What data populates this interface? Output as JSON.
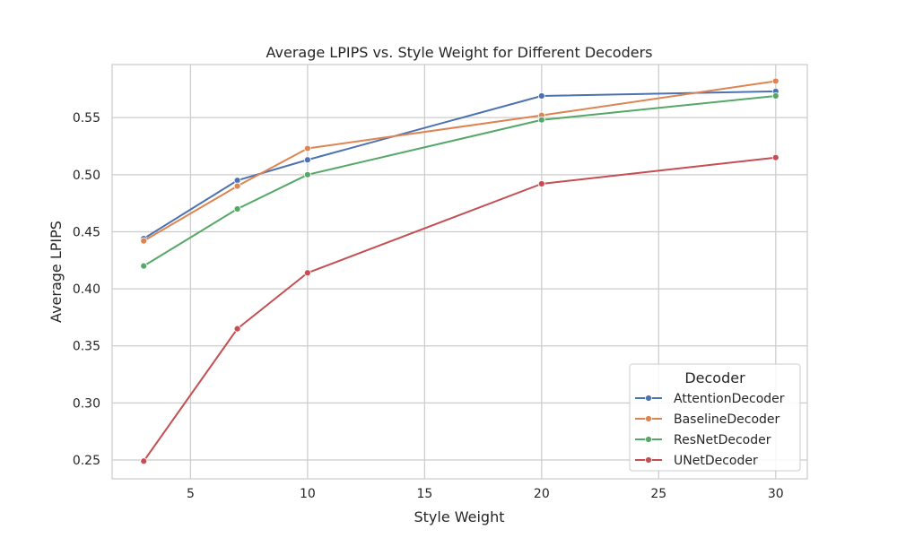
{
  "chart_data": {
    "type": "line",
    "title": "Average LPIPS vs. Style Weight for Different Decoders",
    "xlabel": "Style Weight",
    "ylabel": "Average LPIPS",
    "xlim": [
      1.65,
      31.35
    ],
    "ylim": [
      0.2335,
      0.5965
    ],
    "xticks": [
      5,
      10,
      15,
      20,
      25,
      30
    ],
    "yticks": [
      0.25,
      0.3,
      0.35,
      0.4,
      0.45,
      0.5,
      0.55
    ],
    "xtick_labels": [
      "5",
      "10",
      "15",
      "20",
      "25",
      "30"
    ],
    "ytick_labels": [
      "0.25",
      "0.30",
      "0.35",
      "0.40",
      "0.45",
      "0.50",
      "0.55"
    ],
    "grid": true,
    "legend": {
      "title": "Decoder",
      "placement": "lower-right"
    },
    "x": [
      3,
      7,
      10,
      20,
      30
    ],
    "series": [
      {
        "name": "AttentionDecoder",
        "color": "#4c72b0",
        "values": [
          0.444,
          0.495,
          0.513,
          0.569,
          0.573
        ]
      },
      {
        "name": "BaselineDecoder",
        "color": "#dd8452",
        "values": [
          0.442,
          0.49,
          0.523,
          0.552,
          0.582
        ]
      },
      {
        "name": "ResNetDecoder",
        "color": "#55a868",
        "values": [
          0.42,
          0.47,
          0.5,
          0.548,
          0.569
        ]
      },
      {
        "name": "UNetDecoder",
        "color": "#c44e52",
        "values": [
          0.249,
          0.365,
          0.414,
          0.492,
          0.515
        ]
      }
    ]
  }
}
